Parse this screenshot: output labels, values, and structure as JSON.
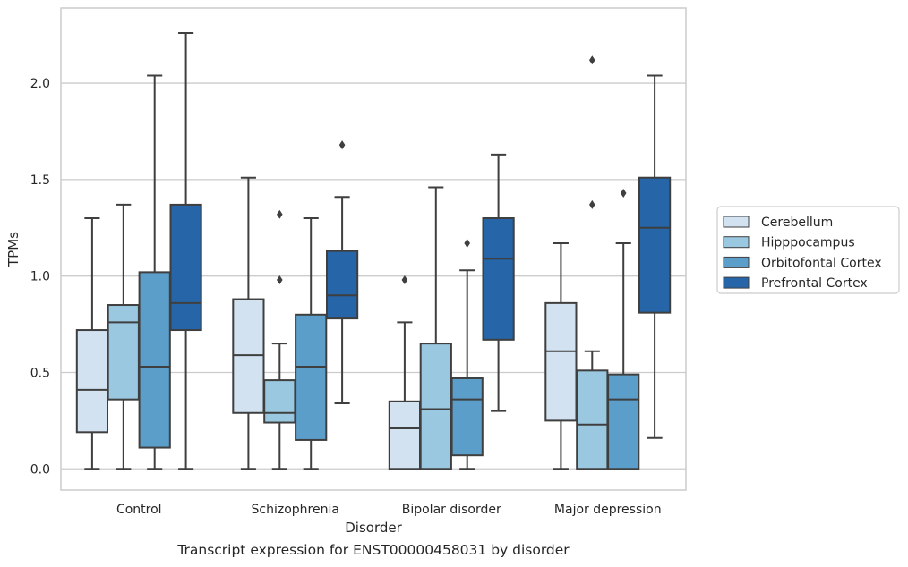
{
  "chart_data": {
    "type": "box",
    "title": "",
    "xlabel": "Disorder",
    "ylabel": "TPMs",
    "caption": "Transcript expression for ENST00000458031 by disorder",
    "categories": [
      "Control",
      "Schizophrenia",
      "Bipolar disorder",
      "Major depression"
    ],
    "ylim": [
      -0.11,
      2.39
    ],
    "yticks": [
      0.0,
      0.5,
      1.0,
      1.5,
      2.0
    ],
    "ytick_labels": [
      "0.0",
      "0.5",
      "1.0",
      "1.5",
      "2.0"
    ],
    "grid": "horizontal",
    "legend_position": "right",
    "series": [
      {
        "name": "Cerebellum",
        "color": "#d2e2f1",
        "boxes": [
          {
            "min": 0.0,
            "q1": 0.19,
            "median": 0.41,
            "q3": 0.72,
            "max": 1.3,
            "outliers": []
          },
          {
            "min": 0.0,
            "q1": 0.29,
            "median": 0.59,
            "q3": 0.88,
            "max": 1.51,
            "outliers": []
          },
          {
            "min": 0.0,
            "q1": 0.0,
            "median": 0.21,
            "q3": 0.35,
            "max": 0.76,
            "outliers": [
              0.98
            ]
          },
          {
            "min": 0.0,
            "q1": 0.25,
            "median": 0.61,
            "q3": 0.86,
            "max": 1.17,
            "outliers": []
          }
        ]
      },
      {
        "name": "Hipppocampus",
        "color": "#9ac8e0",
        "boxes": [
          {
            "min": 0.0,
            "q1": 0.36,
            "median": 0.76,
            "q3": 0.85,
            "max": 1.37,
            "outliers": []
          },
          {
            "min": 0.0,
            "q1": 0.24,
            "median": 0.29,
            "q3": 0.46,
            "max": 0.65,
            "outliers": [
              0.98,
              1.32
            ]
          },
          {
            "min": 0.0,
            "q1": 0.0,
            "median": 0.31,
            "q3": 0.65,
            "max": 1.46,
            "outliers": []
          },
          {
            "min": 0.0,
            "q1": 0.0,
            "median": 0.23,
            "q3": 0.51,
            "max": 0.61,
            "outliers": [
              1.37,
              2.12
            ]
          }
        ]
      },
      {
        "name": "Orbitofontal Cortex",
        "color": "#5a9ec9",
        "boxes": [
          {
            "min": 0.0,
            "q1": 0.11,
            "median": 0.53,
            "q3": 1.02,
            "max": 2.04,
            "outliers": []
          },
          {
            "min": 0.0,
            "q1": 0.15,
            "median": 0.53,
            "q3": 0.8,
            "max": 1.3,
            "outliers": []
          },
          {
            "min": 0.0,
            "q1": 0.07,
            "median": 0.36,
            "q3": 0.47,
            "max": 1.03,
            "outliers": [
              1.17
            ]
          },
          {
            "min": 0.0,
            "q1": 0.0,
            "median": 0.36,
            "q3": 0.49,
            "max": 1.17,
            "outliers": [
              1.43
            ]
          }
        ]
      },
      {
        "name": "Prefrontal Cortex",
        "color": "#2565a8",
        "boxes": [
          {
            "min": 0.0,
            "q1": 0.72,
            "median": 0.86,
            "q3": 1.37,
            "max": 2.26,
            "outliers": []
          },
          {
            "min": 0.34,
            "q1": 0.78,
            "median": 0.9,
            "q3": 1.13,
            "max": 1.41,
            "outliers": [
              1.68
            ]
          },
          {
            "min": 0.3,
            "q1": 0.67,
            "median": 1.09,
            "q3": 1.3,
            "max": 1.63,
            "outliers": []
          },
          {
            "min": 0.16,
            "q1": 0.81,
            "median": 1.25,
            "q3": 1.51,
            "max": 2.04,
            "outliers": []
          }
        ]
      }
    ]
  }
}
